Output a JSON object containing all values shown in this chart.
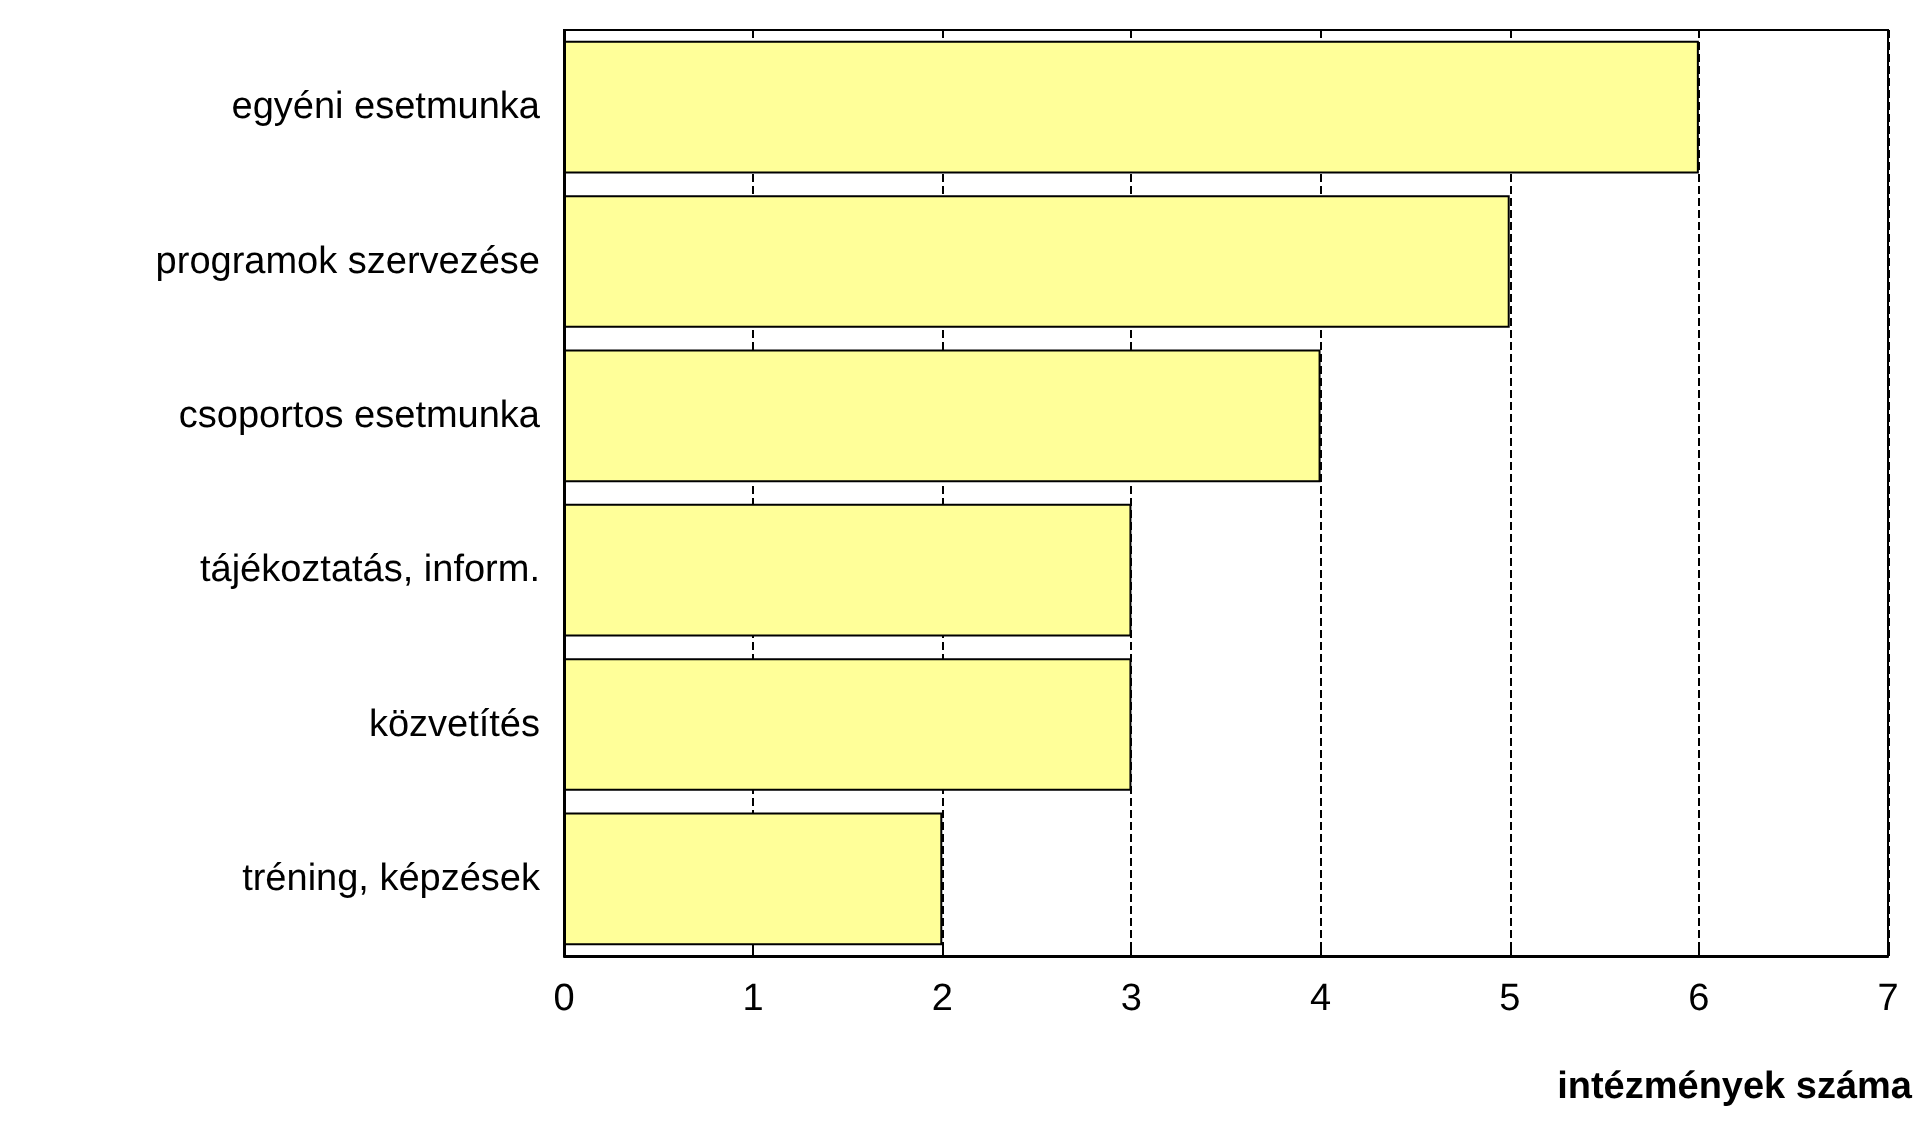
{
  "chart_data": {
    "type": "bar",
    "orientation": "horizontal",
    "xlabel": "intézmények száma",
    "categories": [
      "egyéni esetmunka",
      "programok szervezése",
      "csoportos esetmunka",
      "tájékoztatás, inform.",
      "közvetítés",
      "tréning, képzések"
    ],
    "values": [
      6,
      5,
      4,
      3,
      3,
      2
    ],
    "color": "#ffff99",
    "xlim": [
      0,
      7
    ],
    "xticks": [
      0,
      1,
      2,
      3,
      4,
      5,
      6,
      7
    ],
    "grid": "x",
    "line_style": "dashed"
  }
}
